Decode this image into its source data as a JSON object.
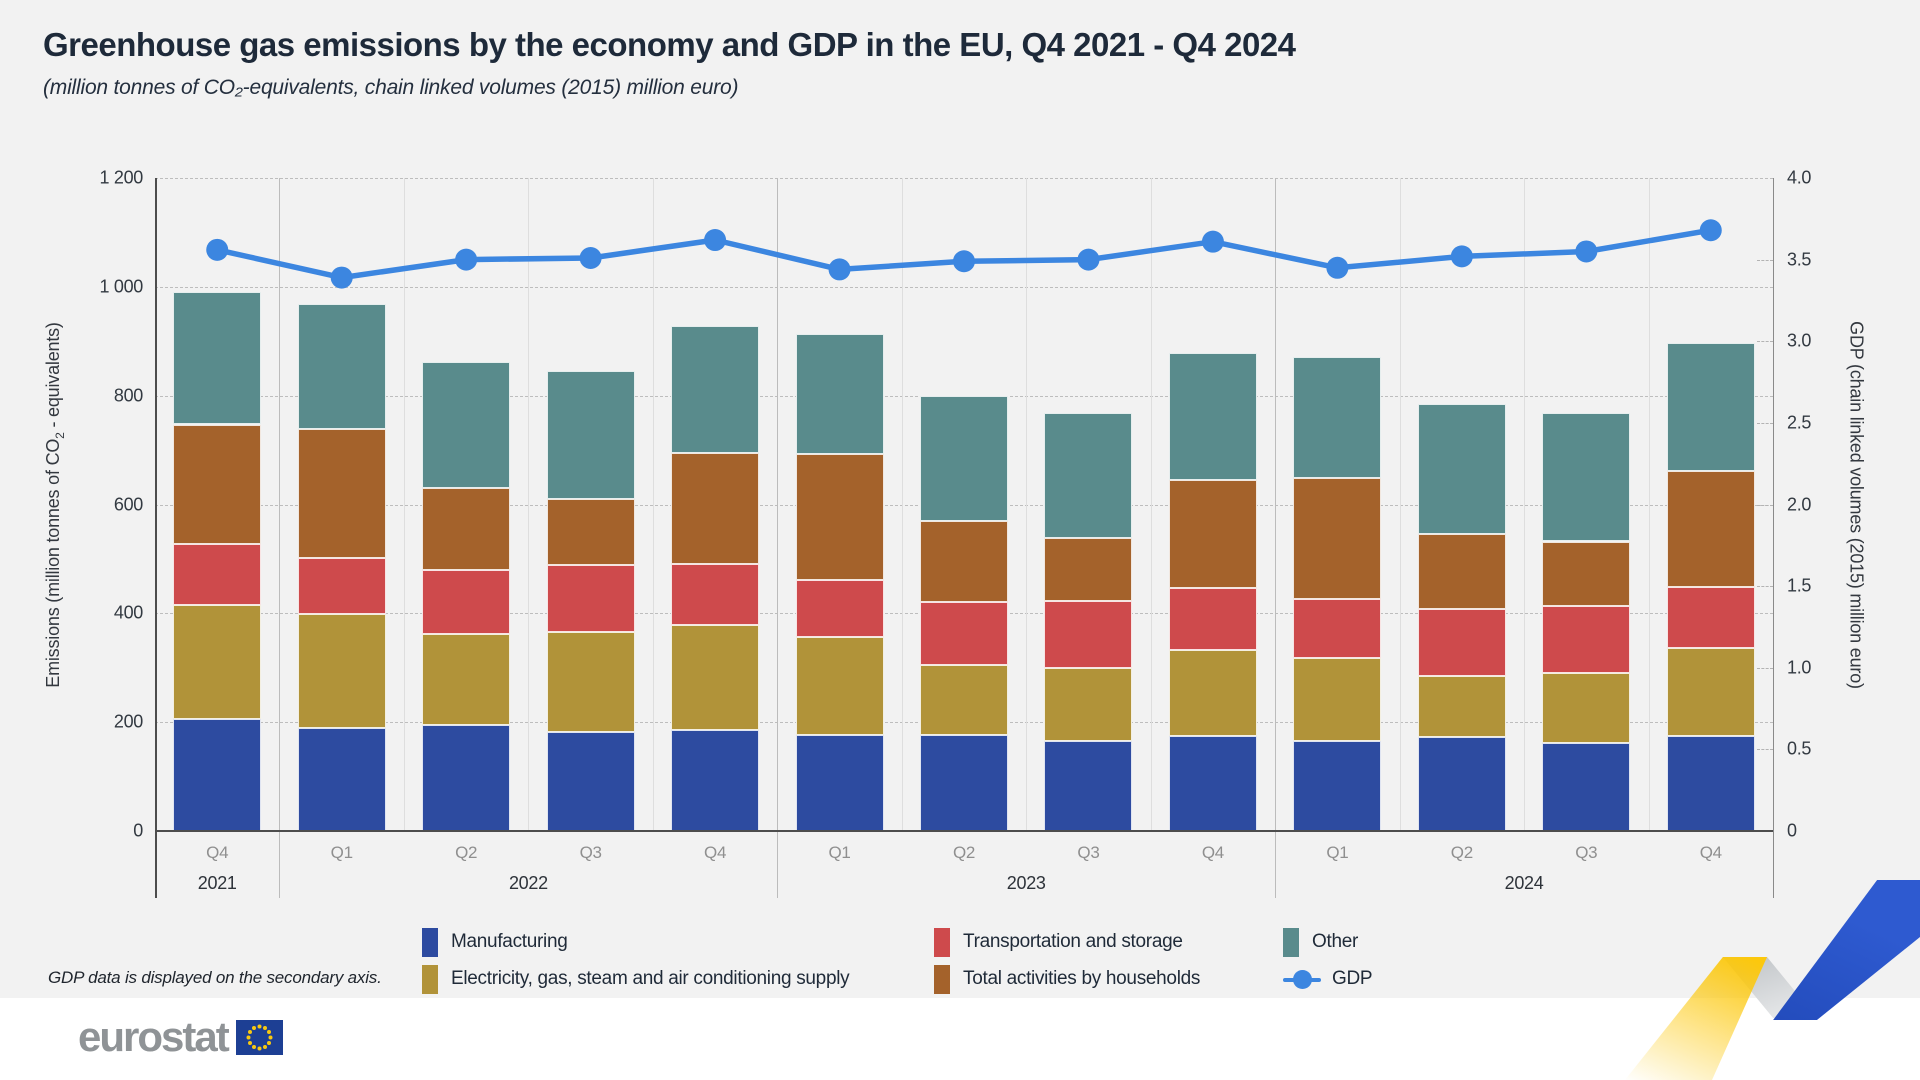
{
  "title": "Greenhouse gas emissions by the economy and GDP in the EU, Q4 2021 - Q4 2024",
  "subtitle": "(million tonnes of CO₂-equivalents, chain linked volumes (2015) million euro)",
  "footnote": "GDP data is displayed on the secondary axis.",
  "logo": {
    "text": "eurostat"
  },
  "colors": {
    "panel_background": "#f2f2f2",
    "manufacturing": "#2d4ba0",
    "electricity": "#b19339",
    "transportation": "#ce4a4c",
    "households": "#a4622b",
    "other": "#598b8c",
    "gdp_line": "#3c86e0",
    "gridline": "#bdbdbd",
    "eu_flag_blue": "#1d3f94",
    "eu_flag_stars": "#f8c811"
  },
  "chart_data": {
    "type": "combo: stacked bar (left axis) + line (right axis)",
    "categories": [
      "Q4",
      "Q1",
      "Q2",
      "Q3",
      "Q4",
      "Q1",
      "Q2",
      "Q3",
      "Q4",
      "Q1",
      "Q2",
      "Q3",
      "Q4"
    ],
    "year_groups": [
      {
        "label": "2021",
        "quarters": 1
      },
      {
        "label": "2022",
        "quarters": 4
      },
      {
        "label": "2023",
        "quarters": 4
      },
      {
        "label": "2024",
        "quarters": 4
      }
    ],
    "series": [
      {
        "name": "Manufacturing",
        "color_key": "manufacturing",
        "values": [
          205,
          190,
          195,
          182,
          185,
          176,
          176,
          166,
          175,
          166,
          172,
          161,
          174
        ]
      },
      {
        "name": "Electricity, gas, steam and air conditioning supply",
        "color_key": "electricity",
        "values": [
          211,
          208,
          167,
          183,
          194,
          180,
          129,
          133,
          157,
          151,
          112,
          129,
          162
        ]
      },
      {
        "name": "Transportation and storage",
        "color_key": "transportation",
        "values": [
          112,
          104,
          118,
          124,
          112,
          106,
          115,
          123,
          115,
          109,
          124,
          123,
          113
        ]
      },
      {
        "name": "Total activities by households",
        "color_key": "households",
        "values": [
          219,
          236,
          150,
          122,
          203,
          231,
          149,
          116,
          198,
          222,
          138,
          119,
          213
        ]
      },
      {
        "name": "Other",
        "color_key": "other",
        "values": [
          243,
          231,
          232,
          234,
          234,
          221,
          231,
          231,
          233,
          223,
          238,
          237,
          235
        ]
      }
    ],
    "bar_totals": [
      990,
      969,
      862,
      845,
      928,
      914,
      800,
      769,
      878,
      871,
      784,
      769,
      897
    ],
    "line_series": {
      "name": "GDP",
      "axis": "right",
      "values": [
        3.56,
        3.39,
        3.5,
        3.51,
        3.62,
        3.44,
        3.49,
        3.5,
        3.61,
        3.45,
        3.52,
        3.55,
        3.68
      ]
    },
    "left_axis": {
      "label_html": "Emissions (million tonnes of CO<sub>2</sub> - equivalents)",
      "label": "Emissions (million tonnes of CO₂ - equivalents)",
      "ticks": [
        "1 200",
        "1 000",
        "800",
        "600",
        "400",
        "200",
        "0"
      ],
      "min": 0,
      "max": 1200,
      "step": 200
    },
    "right_axis": {
      "label": "GDP (chain linked volumes (2015) million euro)",
      "ticks": [
        "4.0",
        "3.5",
        "3.0",
        "2.5",
        "2.0",
        "1.5",
        "1.0",
        "0.5",
        "0"
      ],
      "min": 0,
      "max": 4.0,
      "step": 0.5
    },
    "grid": "horizontal dashed, vertical quarter separators",
    "legend_position": "bottom, two rows x three columns"
  },
  "legend": {
    "items": [
      {
        "label": "Manufacturing",
        "color_key": "manufacturing"
      },
      {
        "label": "Electricity, gas, steam and air conditioning supply",
        "color_key": "electricity"
      },
      {
        "label": "Transportation and storage",
        "color_key": "transportation"
      },
      {
        "label": "Total activities by households",
        "color_key": "households"
      },
      {
        "label": "Other",
        "color_key": "other"
      },
      {
        "label": "GDP",
        "color_key": "gdp_line"
      }
    ]
  }
}
